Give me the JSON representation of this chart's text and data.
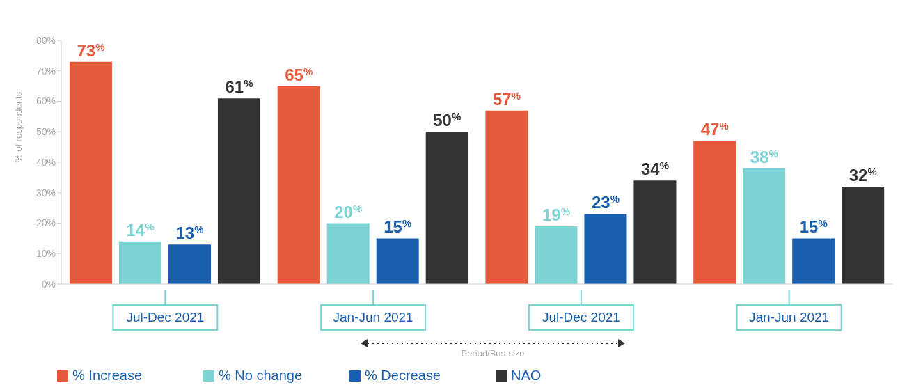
{
  "chart_data": {
    "type": "bar",
    "ylabel": "% of respondents",
    "categories": [
      "Jul-Dec 2021",
      "Jan-Jun 2021",
      "Jul-Dec 2021",
      "Jan-Jun 2021"
    ],
    "series": [
      {
        "name": "% Increase",
        "color": "#e45a3b",
        "values": [
          73,
          65,
          57,
          47
        ],
        "value_labels": [
          "73$^{%}$",
          "65$^{%}$",
          "57$^{%}$",
          "47$^{%}$"
        ]
      },
      {
        "name": "% No change",
        "color": "#7dd3d3",
        "values": [
          14,
          20,
          19,
          38
        ],
        "value_labels": [
          "14$^{%}$",
          "20$^{%}$",
          "19$^{%}$",
          "38$^{%}$"
        ]
      },
      {
        "name": "% Decrease",
        "color": "#1a5fae",
        "values": [
          13,
          15,
          23,
          15
        ],
        "value_labels": [
          "13$^{%}$",
          "15$^{%}$",
          "23$^{%}$",
          "15$^{%}$"
        ]
      },
      {
        "name": "NAO",
        "color": "#333333",
        "values": [
          61,
          50,
          34,
          32
        ],
        "value_labels": [
          "61$^{%}$",
          "50$^{%}$",
          "34$^{%}$",
          "32$^{%}$"
        ]
      }
    ],
    "ylim": [
      0,
      80
    ],
    "yticks": [
      {
        "value": 0,
        "label": "0%"
      },
      {
        "value": 10,
        "label": "10%"
      },
      {
        "value": 20,
        "label": "20%"
      },
      {
        "value": 30,
        "label": "30%"
      },
      {
        "value": 40,
        "label": "40%"
      },
      {
        "value": 50,
        "label": "50%"
      },
      {
        "value": 60,
        "label": "60%"
      },
      {
        "value": 70,
        "label": "70%"
      },
      {
        "value": 80,
        "label": "80%"
      }
    ],
    "grid": false,
    "legend": "bottom",
    "annotations": [
      "Period/Bus-size"
    ]
  }
}
